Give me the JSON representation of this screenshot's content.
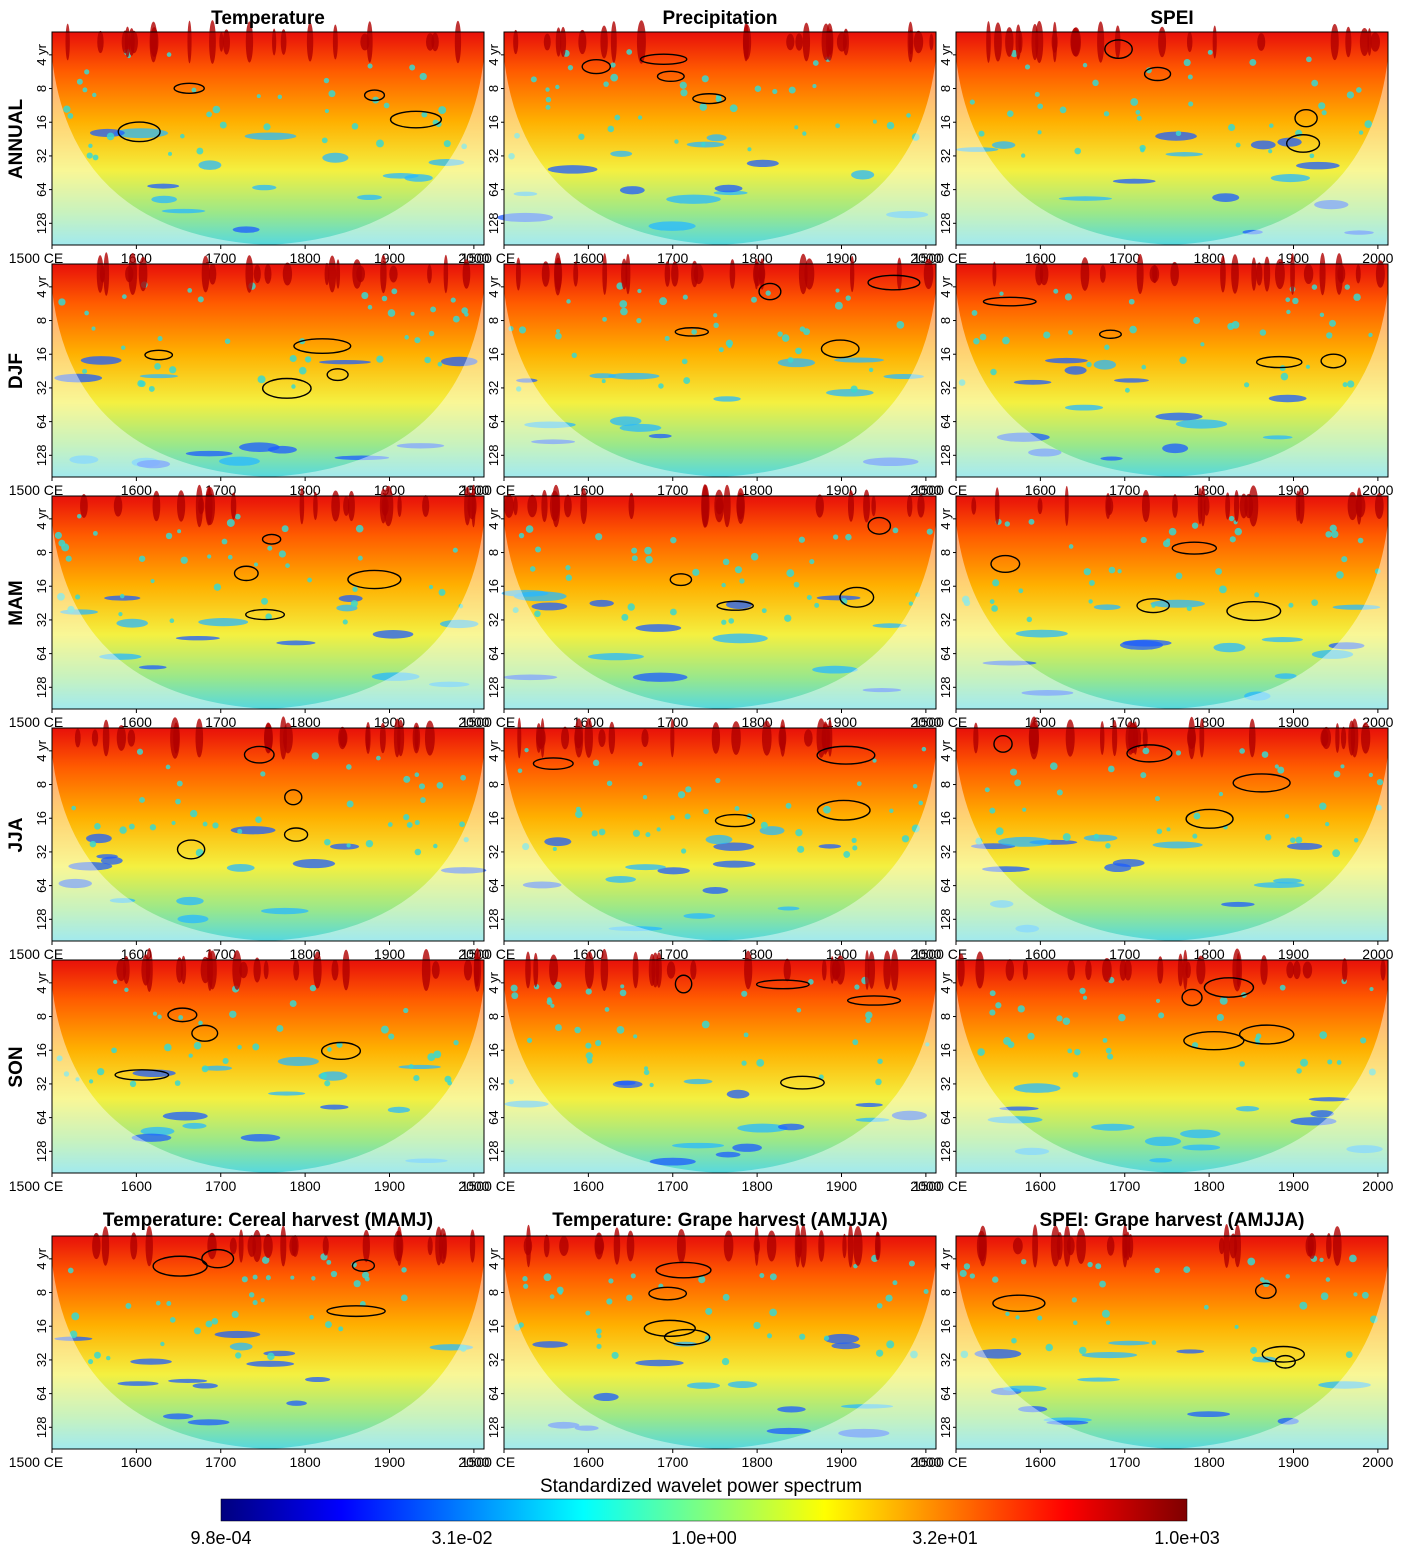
{
  "chart_data": {
    "type": "heatmap",
    "description_kind": "wavelet power spectra grid",
    "column_titles": [
      "Temperature",
      "Precipitation",
      "SPEI"
    ],
    "row_titles": [
      "ANNUAL",
      "DJF",
      "MAM",
      "JJA",
      "SON"
    ],
    "bottom_row_titles": [
      "Temperature: Cereal harvest (MAMJ)",
      "Temperature: Grape harvest (AMJJA)",
      "SPEI: Grape harvest (AMJJA)"
    ],
    "x_ticks": [
      "1500 CE",
      "1600",
      "1700",
      "1800",
      "1900",
      "2000"
    ],
    "x_tick_values": [
      1500,
      1600,
      1700,
      1800,
      1900,
      2000
    ],
    "xlim": [
      1500,
      2012
    ],
    "y_ticks": [
      "4 yr",
      "8",
      "16",
      "32",
      "64",
      "128"
    ],
    "y_tick_values": [
      4,
      8,
      16,
      32,
      64,
      128
    ],
    "ylim": [
      2.5,
      200
    ],
    "y_scale": "log2",
    "colorbar": {
      "title": "Standardized wavelet power spectrum",
      "ticks": [
        "9.8e-04",
        "3.1e-02",
        "1.0e+00",
        "3.2e+01",
        "1.0e+03"
      ],
      "colors": [
        "#00007f",
        "#0000ff",
        "#007fff",
        "#00ffff",
        "#7fff7f",
        "#ffff00",
        "#ff7f00",
        "#ff0000",
        "#7f0000"
      ]
    }
  }
}
